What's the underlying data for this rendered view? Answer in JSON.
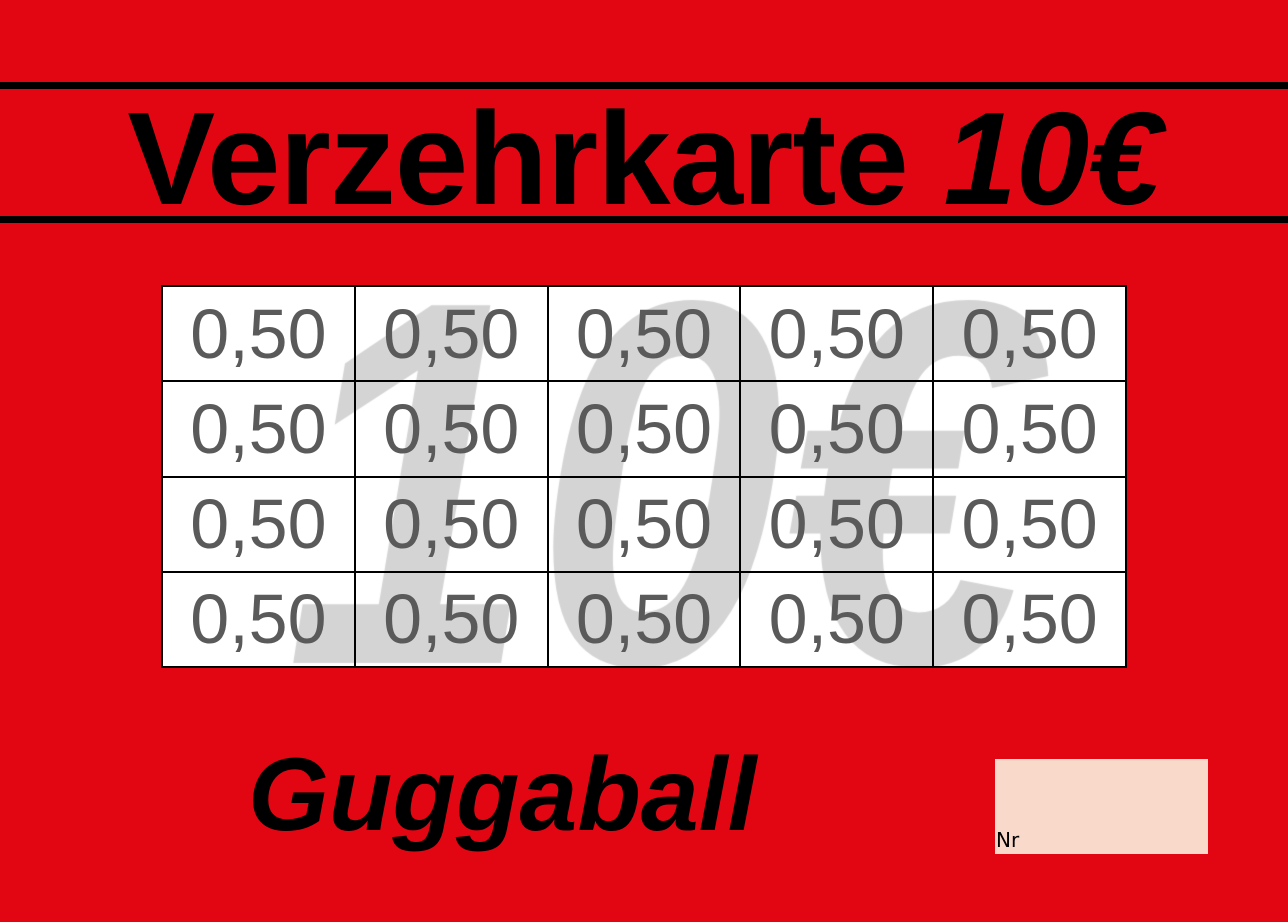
{
  "title": {
    "text": "Verzehrkarte",
    "amount": "10€"
  },
  "watermark": "10€",
  "grid": {
    "rows": [
      [
        "0,50",
        "0,50",
        "0,50",
        "0,50",
        "0,50"
      ],
      [
        "0,50",
        "0,50",
        "0,50",
        "0,50",
        "0,50"
      ],
      [
        "0,50",
        "0,50",
        "0,50",
        "0,50",
        "0,50"
      ],
      [
        "0,50",
        "0,50",
        "0,50",
        "0,50",
        "0,50"
      ]
    ]
  },
  "event": "Guggaball",
  "number_field": {
    "label": "Nr"
  },
  "colors": {
    "background": "#e20613",
    "number_box": "#f9d9ca",
    "cell_text": "#5a5a5a",
    "watermark": "#d4d4d4"
  }
}
